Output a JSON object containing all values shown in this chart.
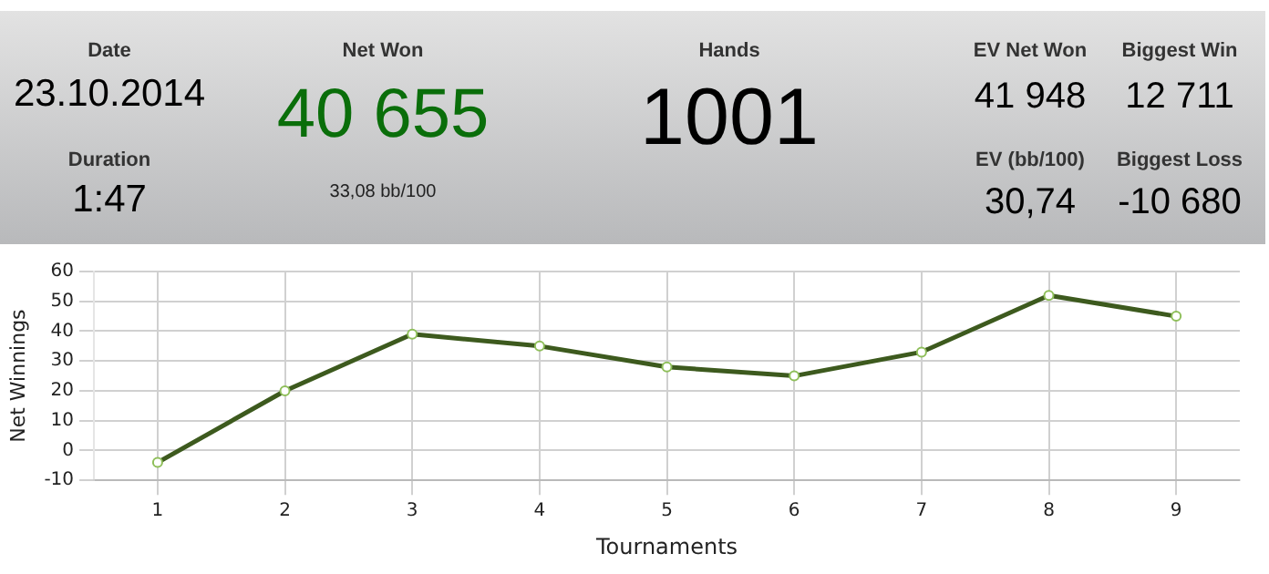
{
  "chart_data": [
    {
      "type": "other",
      "annotations": [
        "Date",
        "23.10.2014",
        "Duration",
        "1:47",
        "Net Won",
        "40 655",
        "33,08 bb/100",
        "Hands",
        "1001",
        "EV Net Won",
        "41 948",
        "EV (bb/100)",
        "30,74",
        "Biggest Win",
        "12 711",
        "Biggest Loss",
        "-10 680"
      ]
    },
    {
      "type": "line",
      "xlabel": "Tournaments",
      "ylabel": "Net Winnings",
      "categories": [
        "1",
        "2",
        "3",
        "4",
        "5",
        "6",
        "7",
        "8",
        "9"
      ],
      "series": [
        {
          "color": "#3d5a1e",
          "values": [
            -4,
            20,
            39,
            35,
            28,
            25,
            33,
            52,
            45
          ]
        }
      ],
      "ylim": [
        -10,
        60
      ],
      "yticks": [
        -10,
        0,
        10,
        20,
        30,
        40,
        50,
        60
      ],
      "grid": true,
      "legend": false,
      "marker": "circle",
      "line_style": "solid"
    }
  ]
}
